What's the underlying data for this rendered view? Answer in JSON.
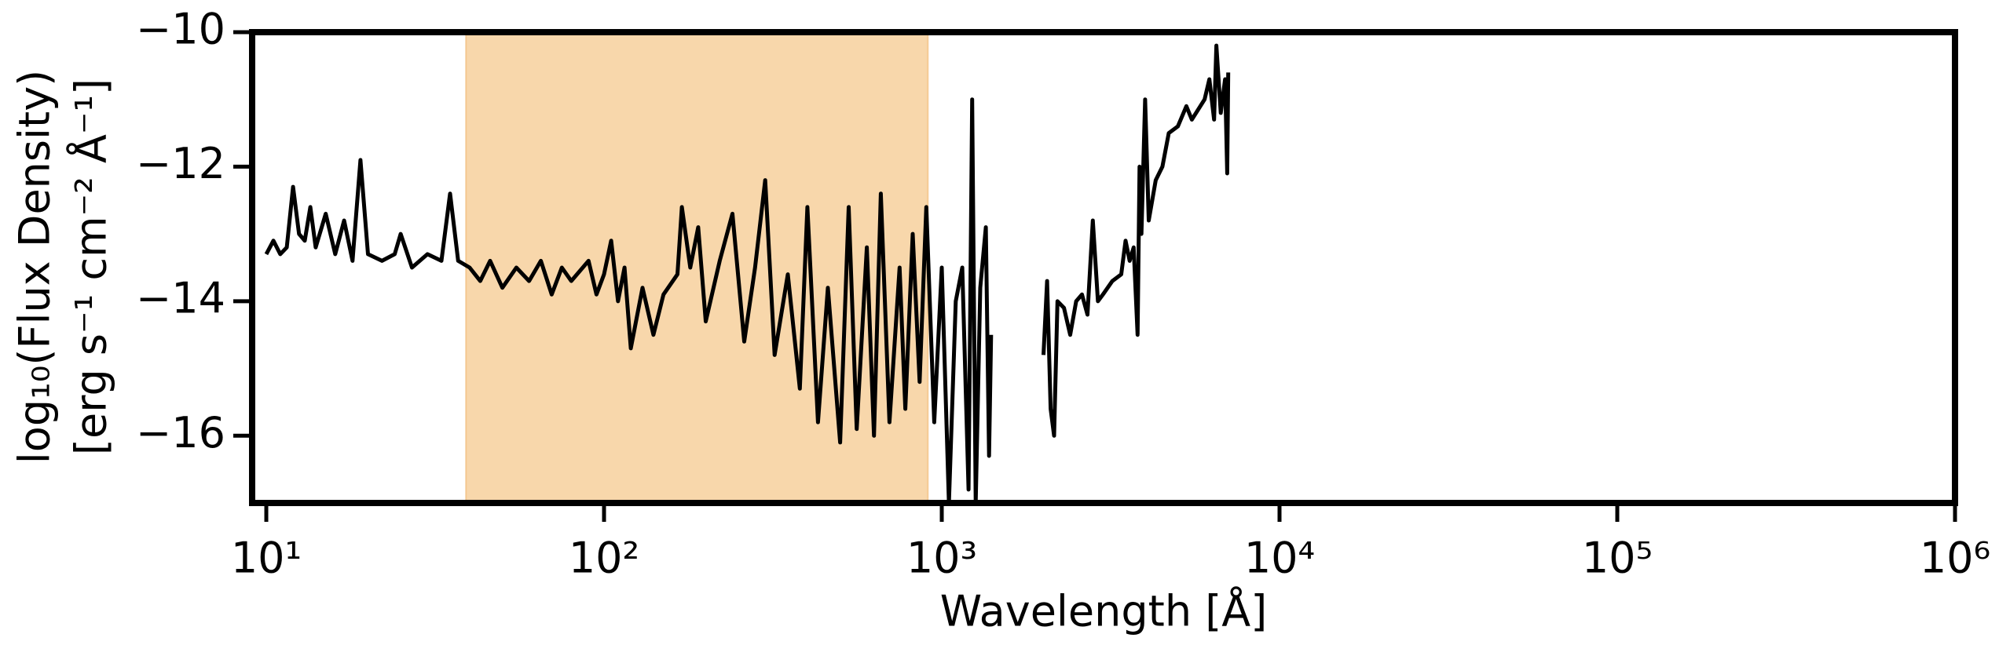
{
  "chart_data": {
    "type": "line",
    "xlabel": "Wavelength [Å]",
    "ylabel": [
      "log₁₀(Flux Density)",
      "[erg s⁻¹ cm⁻² Å⁻¹]"
    ],
    "xscale": "log",
    "xlim": [
      9.08,
      1000000
    ],
    "ylim": [
      -17,
      -10
    ],
    "xticks": [
      {
        "value": 10,
        "label": "10¹"
      },
      {
        "value": 100,
        "label": "10²"
      },
      {
        "value": 1000,
        "label": "10³"
      },
      {
        "value": 10000,
        "label": "10⁴"
      },
      {
        "value": 100000,
        "label": "10⁵"
      },
      {
        "value": 1000000,
        "label": "10⁶"
      }
    ],
    "yticks": [
      {
        "value": -10,
        "label": "−10"
      },
      {
        "value": -12,
        "label": "−12"
      },
      {
        "value": -14,
        "label": "−14"
      },
      {
        "value": -16,
        "label": "−16"
      }
    ],
    "shaded_region": {
      "xmin": 39,
      "xmax": 910,
      "color": "#f8d7ab"
    },
    "color": "#000000",
    "x": [
      10,
      10.5,
      11,
      11.5,
      12,
      12.5,
      13,
      13.5,
      14,
      15,
      16,
      17,
      18,
      19,
      20,
      22,
      24,
      25,
      27,
      30,
      33,
      35,
      37,
      40,
      43,
      46,
      50,
      55,
      60,
      65,
      70,
      75,
      80,
      90,
      95,
      100,
      105,
      110,
      115,
      120,
      130,
      140,
      150,
      165,
      170,
      180,
      190,
      200,
      220,
      240,
      260,
      280,
      300,
      320,
      350,
      380,
      400,
      430,
      460,
      500,
      530,
      560,
      600,
      630,
      660,
      700,
      750,
      780,
      820,
      860,
      900,
      950,
      1000,
      1050,
      1100,
      1150,
      1200,
      1230,
      1260,
      1300,
      1350,
      1380,
      1400,
      1600,
      2000,
      2050,
      2100,
      2150,
      2200,
      2300,
      2400,
      2500,
      2600,
      2700,
      2800,
      2900,
      3000,
      3200,
      3400,
      3500,
      3600,
      3700,
      3800,
      3850,
      3900,
      4000,
      4100,
      4300,
      4500,
      4700,
      5000,
      5300,
      5500,
      6000,
      6200,
      6400,
      6500,
      6700,
      6900,
      7000,
      7050
    ],
    "values": [
      -13.3,
      -13.1,
      -13.3,
      -13.2,
      -12.3,
      -13.0,
      -13.1,
      -12.6,
      -13.2,
      -12.7,
      -13.3,
      -12.8,
      -13.4,
      -11.9,
      -13.3,
      -13.4,
      -13.3,
      -13.0,
      -13.5,
      -13.3,
      -13.4,
      -12.4,
      -13.4,
      -13.5,
      -13.7,
      -13.4,
      -13.8,
      -13.5,
      -13.7,
      -13.4,
      -13.9,
      -13.5,
      -13.7,
      -13.4,
      -13.9,
      -13.6,
      -13.1,
      -14.0,
      -13.5,
      -14.7,
      -13.8,
      -14.5,
      -13.9,
      -13.6,
      -12.6,
      -13.5,
      -12.9,
      -14.3,
      -13.4,
      -12.7,
      -14.6,
      -13.5,
      -12.2,
      -14.8,
      -13.6,
      -15.3,
      -12.6,
      -15.8,
      -13.8,
      -16.1,
      -12.6,
      -15.9,
      -13.2,
      -16.0,
      -12.4,
      -15.8,
      -13.5,
      -15.6,
      -13.0,
      -15.2,
      -12.6,
      -15.8,
      -13.5,
      -17,
      -14.0,
      -13.5,
      -16.8,
      -11.0,
      -17,
      -13.8,
      -12.9,
      -16.3,
      -14.5,
      null,
      -14.8,
      -13.7,
      -15.6,
      -16.0,
      -14.0,
      -14.1,
      -14.5,
      -14.0,
      -13.9,
      -14.2,
      -12.8,
      -14.0,
      -13.9,
      -13.7,
      -13.6,
      -13.1,
      -13.4,
      -13.2,
      -14.5,
      -12.0,
      -13.0,
      -11.0,
      -12.8,
      -12.2,
      -12.0,
      -11.5,
      -11.4,
      -11.1,
      -11.3,
      -11.0,
      -10.7,
      -11.3,
      -10.2,
      -11.2,
      -10.7,
      -12.1,
      -10.6
    ]
  }
}
